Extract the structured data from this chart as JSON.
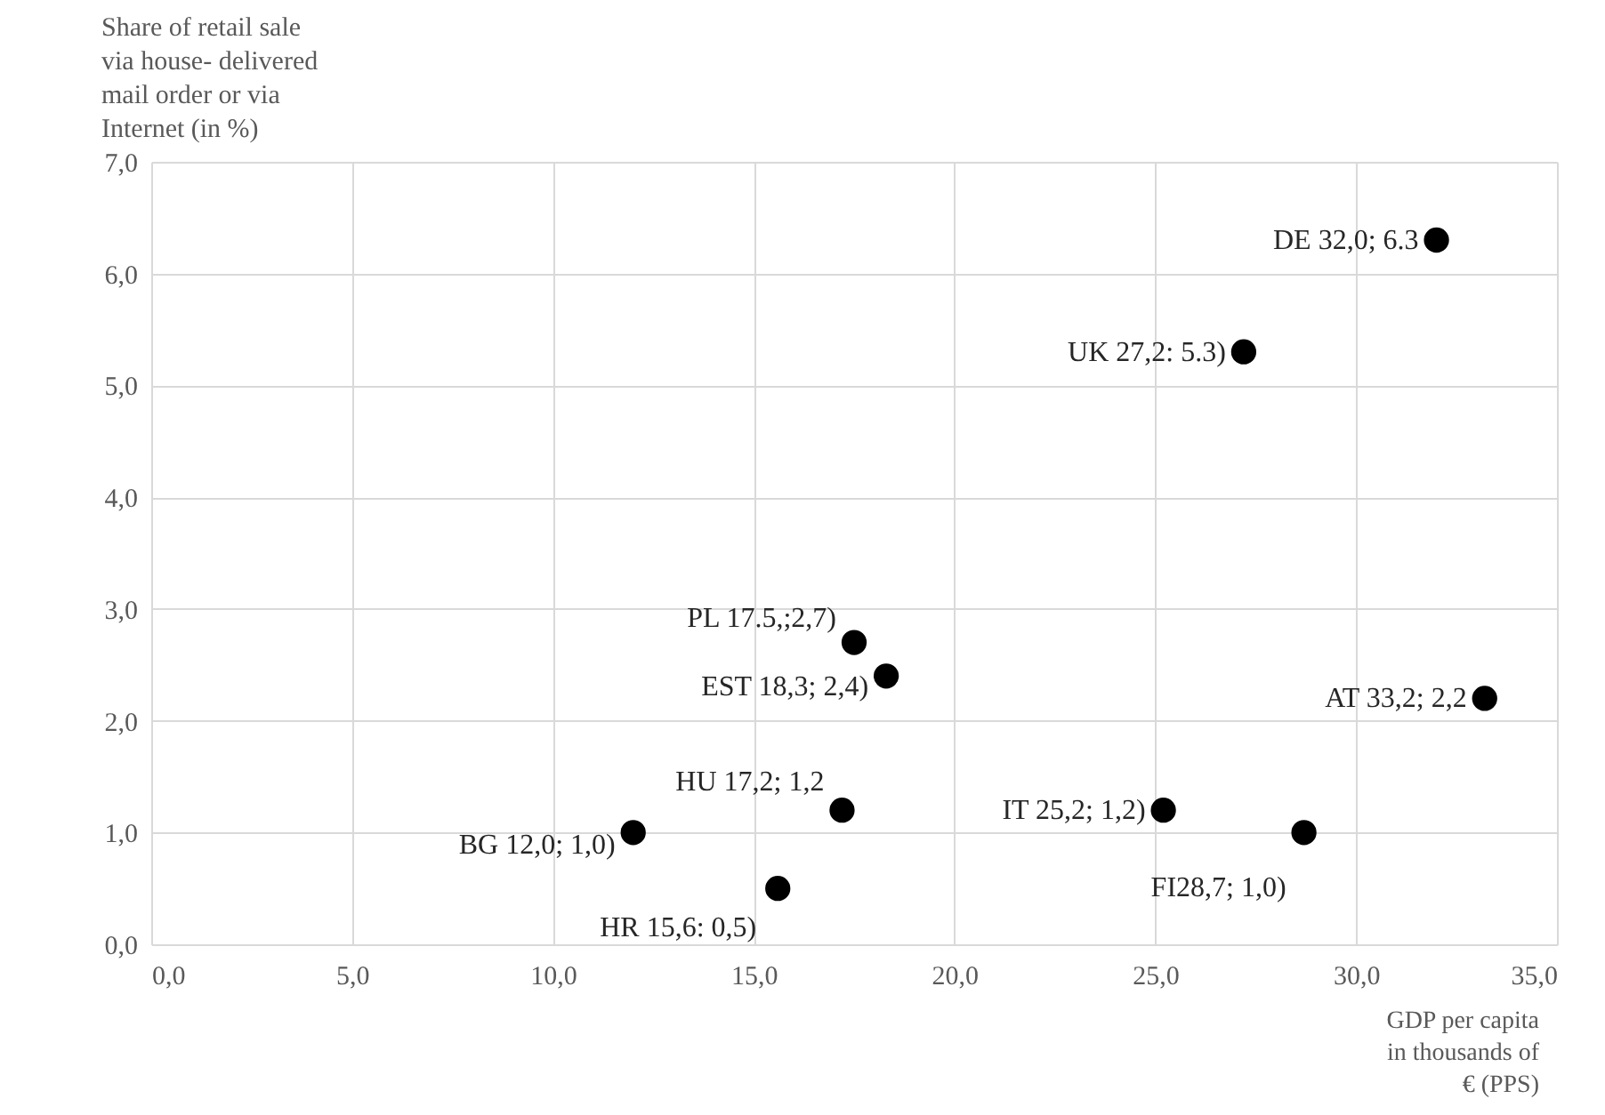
{
  "chart_data": {
    "type": "scatter",
    "ylabel": "Share of retail sale via house- delivered mail order or via Internet (in %)",
    "xlabel": "GDP per capita in thousands of € (PPS)",
    "x": [
      32.0,
      27.2,
      17.5,
      18.3,
      33.2,
      17.2,
      25.2,
      12.0,
      28.7,
      15.6
    ],
    "series": [
      {
        "color": "#000000",
        "values": [
          6.3,
          5.3,
          2.7,
          2.4,
          2.2,
          1.2,
          1.2,
          1.0,
          1.0,
          0.5
        ]
      }
    ],
    "annotations": [
      {
        "text": "DE 32,0; 6.3",
        "x": 32.0,
        "y": 6.3
      },
      {
        "text": "UK 27,2: 5.3)",
        "x": 27.2,
        "y": 5.3
      },
      {
        "text": "PL 17.5,;2,7)",
        "x": 17.5,
        "y": 2.7
      },
      {
        "text": "EST 18,3; 2,4)",
        "x": 18.3,
        "y": 2.4
      },
      {
        "text": "AT 33,2; 2,2",
        "x": 33.2,
        "y": 2.2
      },
      {
        "text": "HU 17,2; 1,2",
        "x": 17.2,
        "y": 1.2
      },
      {
        "text": "IT 25,2; 1,2)",
        "x": 25.2,
        "y": 1.2
      },
      {
        "text": "BG 12,0; 1,0)",
        "x": 12.0,
        "y": 1.0
      },
      {
        "text": "FI28,7; 1,0)",
        "x": 28.7,
        "y": 1.0
      },
      {
        "text": "HR 15,6: 0,5)",
        "x": 15.6,
        "y": 0.5
      }
    ],
    "xlim": [
      0,
      35
    ],
    "ylim": [
      0,
      7
    ],
    "xticks": [
      {
        "value": 0,
        "label": "0,0"
      },
      {
        "value": 5,
        "label": "5,0"
      },
      {
        "value": 10,
        "label": "10,0"
      },
      {
        "value": 15,
        "label": "15,0"
      },
      {
        "value": 20,
        "label": "20,0"
      },
      {
        "value": 25,
        "label": "25,0"
      },
      {
        "value": 30,
        "label": "30,0"
      },
      {
        "value": 35,
        "label": "35,0"
      }
    ],
    "yticks": [
      {
        "value": 0,
        "label": "0,0"
      },
      {
        "value": 1,
        "label": "1,0"
      },
      {
        "value": 2,
        "label": "2,0"
      },
      {
        "value": 3,
        "label": "3,0"
      },
      {
        "value": 4,
        "label": "4,0"
      },
      {
        "value": 5,
        "label": "5,0"
      },
      {
        "value": 6,
        "label": "6,0"
      },
      {
        "value": 7,
        "label": "7,0"
      }
    ],
    "grid": true,
    "marker": "circle"
  }
}
